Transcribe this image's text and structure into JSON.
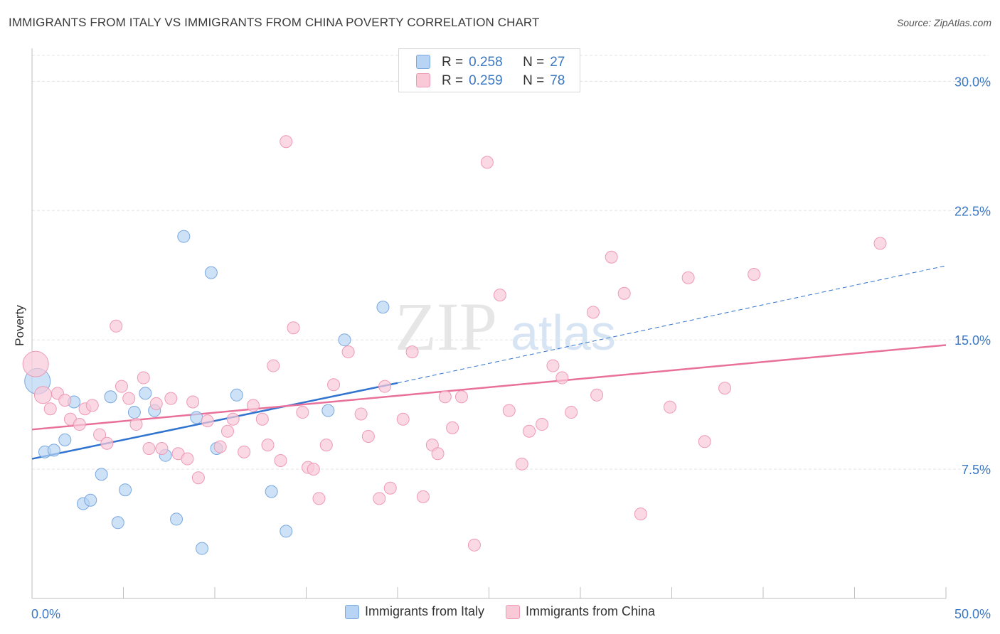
{
  "title": "IMMIGRANTS FROM ITALY VS IMMIGRANTS FROM CHINA POVERTY CORRELATION CHART",
  "source": "Source: ZipAtlas.com",
  "watermark": {
    "part1": "ZIP",
    "part2": "atlas"
  },
  "colors": {
    "italy_fill": "#b8d4f4",
    "italy_stroke": "#7aa8de",
    "italy_line": "#3074d0",
    "china_fill": "#f9c9d8",
    "china_stroke": "#ee9ab5",
    "china_line": "#e8709a",
    "axis_label": "#3b78c3",
    "grid": "#e3e3e3"
  },
  "stats": [
    {
      "r_label": "R =",
      "r_value": "0.258",
      "n_label": "N =",
      "n_value": "27"
    },
    {
      "r_label": "R =",
      "r_value": "0.259",
      "n_label": "N =",
      "n_value": "78"
    }
  ],
  "legend": [
    {
      "label": "Immigrants from Italy"
    },
    {
      "label": "Immigrants from China"
    }
  ],
  "chart_data": {
    "type": "scatter",
    "title": "IMMIGRANTS FROM ITALY VS IMMIGRANTS FROM CHINA POVERTY CORRELATION CHART",
    "xlabel": "",
    "ylabel": "Poverty",
    "xlim": [
      0,
      50
    ],
    "ylim": [
      0,
      31.5
    ],
    "x_tick_labels": [
      "0.0%",
      "50.0%"
    ],
    "y_ticks": [
      7.5,
      15.0,
      22.5,
      30.0
    ],
    "y_tick_labels": [
      "7.5%",
      "15.0%",
      "22.5%",
      "30.0%"
    ],
    "grid": true,
    "legend_position": "bottom",
    "series": [
      {
        "name": "Immigrants from Italy",
        "trend": {
          "x0": 0,
          "y0": 8.1,
          "x1": 20,
          "y1": 12.5,
          "extend_to": 50,
          "extend_y": 19.3
        },
        "points": [
          {
            "x": 0.3,
            "y": 12.6,
            "big": true
          },
          {
            "x": 0.7,
            "y": 8.5
          },
          {
            "x": 1.2,
            "y": 8.6
          },
          {
            "x": 1.8,
            "y": 9.2
          },
          {
            "x": 2.3,
            "y": 11.4
          },
          {
            "x": 2.8,
            "y": 5.5
          },
          {
            "x": 3.2,
            "y": 5.7
          },
          {
            "x": 3.8,
            "y": 7.2
          },
          {
            "x": 4.3,
            "y": 11.7
          },
          {
            "x": 4.7,
            "y": 4.4
          },
          {
            "x": 5.1,
            "y": 6.3
          },
          {
            "x": 5.6,
            "y": 10.8
          },
          {
            "x": 6.2,
            "y": 11.9
          },
          {
            "x": 6.7,
            "y": 10.9
          },
          {
            "x": 7.3,
            "y": 8.3
          },
          {
            "x": 7.9,
            "y": 4.6
          },
          {
            "x": 8.3,
            "y": 21.0
          },
          {
            "x": 9.0,
            "y": 10.5
          },
          {
            "x": 9.3,
            "y": 2.9
          },
          {
            "x": 9.8,
            "y": 18.9
          },
          {
            "x": 10.1,
            "y": 8.7
          },
          {
            "x": 11.2,
            "y": 11.8
          },
          {
            "x": 13.1,
            "y": 6.2
          },
          {
            "x": 13.9,
            "y": 3.9
          },
          {
            "x": 16.2,
            "y": 10.9
          },
          {
            "x": 17.1,
            "y": 15.0
          },
          {
            "x": 19.2,
            "y": 16.9
          }
        ]
      },
      {
        "name": "Immigrants from China",
        "trend": {
          "x0": 0,
          "y0": 9.8,
          "x1": 50,
          "y1": 14.7
        },
        "points": [
          {
            "x": 0.2,
            "y": 13.6,
            "big": true
          },
          {
            "x": 0.6,
            "y": 11.8,
            "mid": true
          },
          {
            "x": 1.0,
            "y": 11.0
          },
          {
            "x": 1.4,
            "y": 11.9
          },
          {
            "x": 1.8,
            "y": 11.5
          },
          {
            "x": 2.1,
            "y": 10.4
          },
          {
            "x": 2.6,
            "y": 10.1
          },
          {
            "x": 2.9,
            "y": 11.0
          },
          {
            "x": 3.3,
            "y": 11.2
          },
          {
            "x": 3.7,
            "y": 9.5
          },
          {
            "x": 4.1,
            "y": 9.0
          },
          {
            "x": 4.6,
            "y": 15.8
          },
          {
            "x": 4.9,
            "y": 12.3
          },
          {
            "x": 5.3,
            "y": 11.6
          },
          {
            "x": 5.7,
            "y": 10.1
          },
          {
            "x": 6.1,
            "y": 12.8
          },
          {
            "x": 6.4,
            "y": 8.7
          },
          {
            "x": 6.8,
            "y": 11.3
          },
          {
            "x": 7.1,
            "y": 8.7
          },
          {
            "x": 7.6,
            "y": 11.6
          },
          {
            "x": 8.0,
            "y": 8.4
          },
          {
            "x": 8.5,
            "y": 8.1
          },
          {
            "x": 8.8,
            "y": 11.4
          },
          {
            "x": 9.1,
            "y": 7.0
          },
          {
            "x": 9.6,
            "y": 10.3
          },
          {
            "x": 10.3,
            "y": 8.8
          },
          {
            "x": 10.7,
            "y": 9.7
          },
          {
            "x": 11.0,
            "y": 10.4
          },
          {
            "x": 11.6,
            "y": 8.5
          },
          {
            "x": 12.1,
            "y": 11.2
          },
          {
            "x": 12.6,
            "y": 10.4
          },
          {
            "x": 12.9,
            "y": 8.9
          },
          {
            "x": 13.2,
            "y": 13.5
          },
          {
            "x": 13.6,
            "y": 8.0
          },
          {
            "x": 13.9,
            "y": 26.5
          },
          {
            "x": 14.3,
            "y": 15.7
          },
          {
            "x": 14.8,
            "y": 10.8
          },
          {
            "x": 15.1,
            "y": 7.6
          },
          {
            "x": 15.4,
            "y": 7.5
          },
          {
            "x": 15.7,
            "y": 5.8
          },
          {
            "x": 16.1,
            "y": 8.9
          },
          {
            "x": 16.5,
            "y": 12.4
          },
          {
            "x": 17.3,
            "y": 14.3
          },
          {
            "x": 18.0,
            "y": 10.7
          },
          {
            "x": 18.4,
            "y": 9.4
          },
          {
            "x": 19.0,
            "y": 5.8
          },
          {
            "x": 19.3,
            "y": 12.3
          },
          {
            "x": 19.6,
            "y": 6.4
          },
          {
            "x": 20.3,
            "y": 10.4
          },
          {
            "x": 20.8,
            "y": 14.3
          },
          {
            "x": 21.4,
            "y": 5.9
          },
          {
            "x": 21.9,
            "y": 8.9
          },
          {
            "x": 22.2,
            "y": 8.4
          },
          {
            "x": 22.6,
            "y": 11.7
          },
          {
            "x": 23.0,
            "y": 9.9
          },
          {
            "x": 23.5,
            "y": 11.7
          },
          {
            "x": 24.2,
            "y": 3.1
          },
          {
            "x": 24.9,
            "y": 25.3
          },
          {
            "x": 25.6,
            "y": 17.6
          },
          {
            "x": 26.1,
            "y": 10.9
          },
          {
            "x": 26.8,
            "y": 7.8
          },
          {
            "x": 27.2,
            "y": 9.7
          },
          {
            "x": 27.9,
            "y": 10.1
          },
          {
            "x": 28.5,
            "y": 13.5
          },
          {
            "x": 29.0,
            "y": 12.8
          },
          {
            "x": 29.5,
            "y": 10.8
          },
          {
            "x": 30.7,
            "y": 16.6
          },
          {
            "x": 30.9,
            "y": 11.8
          },
          {
            "x": 31.7,
            "y": 19.8
          },
          {
            "x": 32.4,
            "y": 17.7
          },
          {
            "x": 33.3,
            "y": 4.9
          },
          {
            "x": 34.9,
            "y": 11.1
          },
          {
            "x": 35.9,
            "y": 18.6
          },
          {
            "x": 36.8,
            "y": 9.1
          },
          {
            "x": 37.9,
            "y": 12.2
          },
          {
            "x": 39.5,
            "y": 18.8
          },
          {
            "x": 46.4,
            "y": 20.6
          }
        ]
      }
    ]
  }
}
